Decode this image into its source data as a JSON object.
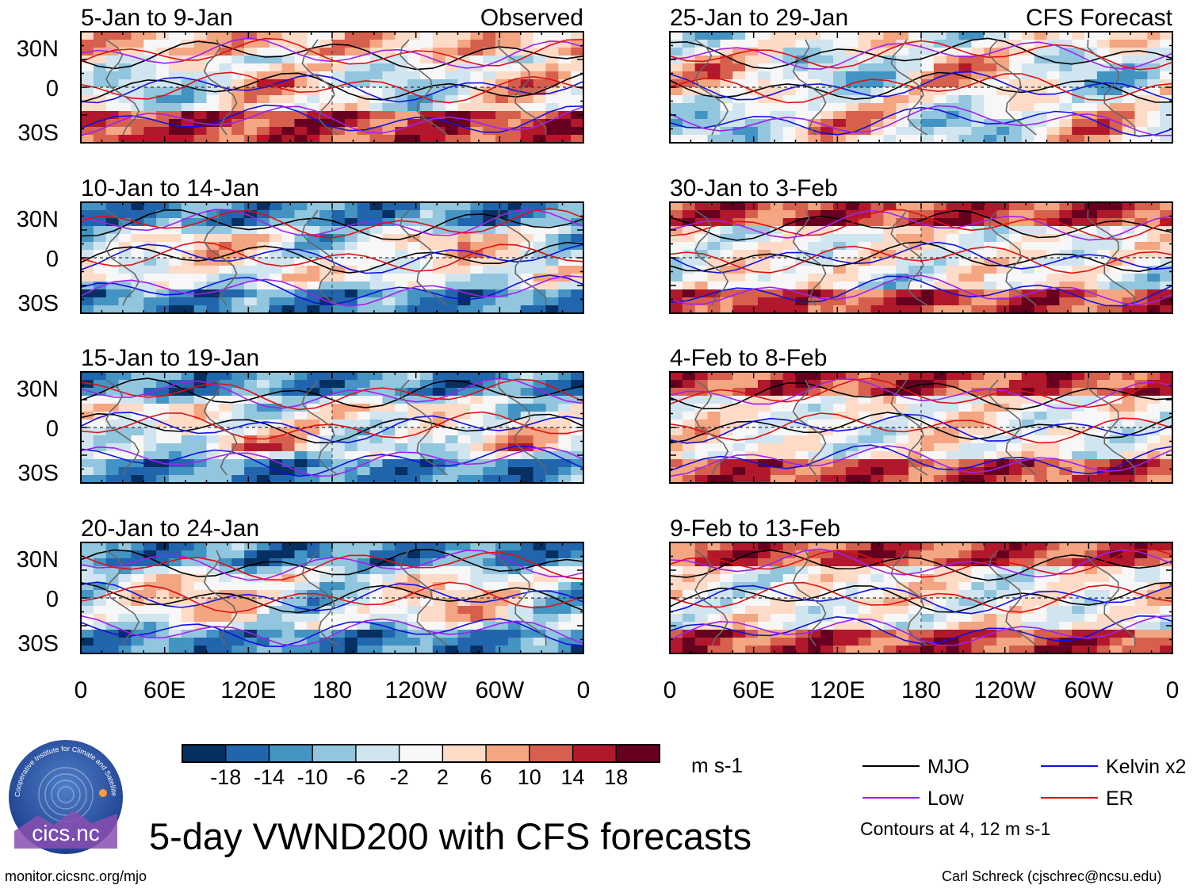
{
  "chart_data": {
    "type": "heatmap",
    "title": "5-day VWND200 with CFS forecasts",
    "variable": "VWND200",
    "units": "m s-1",
    "x_ticks": [
      "0",
      "60E",
      "120E",
      "180",
      "120W",
      "60W",
      "0"
    ],
    "y_ticks": [
      "30N",
      "0",
      "30S"
    ],
    "observed_label": "Observed",
    "forecast_label": "CFS Forecast",
    "colorbar": {
      "levels": [
        "-18",
        "-14",
        "-10",
        "-6",
        "-2",
        "2",
        "6",
        "10",
        "14",
        "18"
      ],
      "colors": [
        "#053061",
        "#2166ac",
        "#4393c3",
        "#92c5de",
        "#d1e5f0",
        "#f7f7f7",
        "#fddbc7",
        "#f4a582",
        "#d6604d",
        "#b2182b",
        "#67001f"
      ]
    },
    "panels": [
      {
        "label": "5-Jan to 9-Jan",
        "source": "Observed"
      },
      {
        "label": "10-Jan to 14-Jan",
        "source": "Observed"
      },
      {
        "label": "15-Jan to 19-Jan",
        "source": "Observed"
      },
      {
        "label": "20-Jan to 24-Jan",
        "source": "Observed"
      },
      {
        "label": "25-Jan to 29-Jan",
        "source": "CFS Forecast"
      },
      {
        "label": "30-Jan to 3-Feb",
        "source": "CFS Forecast"
      },
      {
        "label": "4-Feb to 8-Feb",
        "source": "CFS Forecast"
      },
      {
        "label": "9-Feb to 13-Feb",
        "source": "CFS Forecast"
      }
    ],
    "contour_legend": [
      {
        "name": "MJO",
        "color": "#000000"
      },
      {
        "name": "Kelvin x2",
        "color": "#1010e0"
      },
      {
        "name": "Low",
        "color": "#a020f0"
      },
      {
        "name": "ER",
        "color": "#e01010"
      }
    ],
    "contour_note": "Contours at 4, 12 m s-1"
  },
  "logo_text": "cics.nc",
  "logo_ring_text": "Cooperative Institute for Climate and Satellites",
  "footer": {
    "left": "monitor.cicsnc.org/mjo",
    "right": "Carl Schreck (cjschrec@ncsu.edu)"
  }
}
